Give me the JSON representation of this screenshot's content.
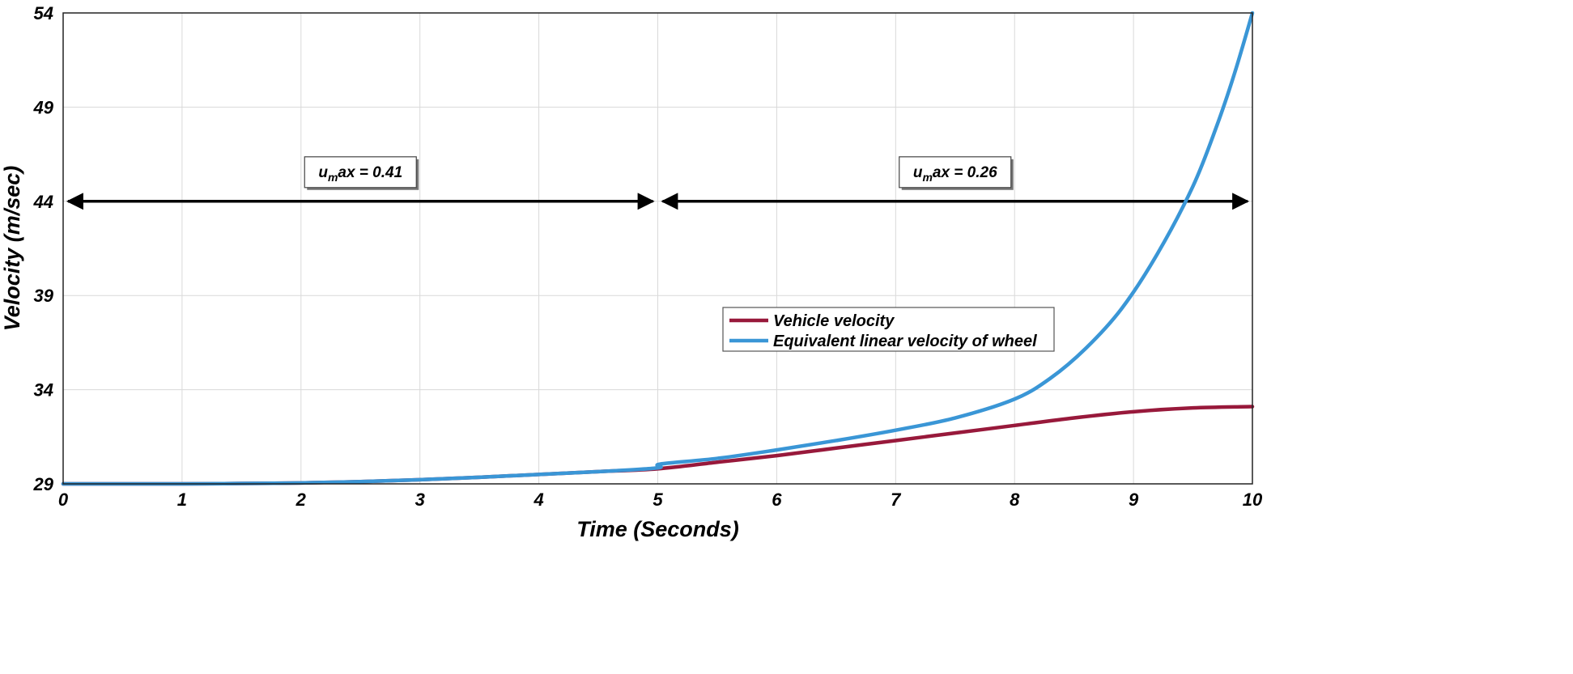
{
  "chart_data": {
    "type": "line",
    "title": "",
    "xlabel": "Time (Seconds)",
    "ylabel": "Velocity (m/sec)",
    "xlim": [
      0,
      10
    ],
    "ylim": [
      29,
      54
    ],
    "xticks": [
      "0",
      "1",
      "2",
      "3",
      "4",
      "5",
      "6",
      "7",
      "8",
      "9",
      "10"
    ],
    "yticks": [
      "29",
      "34",
      "39",
      "44",
      "49",
      "54"
    ],
    "grid": true,
    "legend_position": "center-right",
    "series": [
      {
        "name": "Vehicle velocity",
        "color": "#98193b",
        "x": [
          0,
          1,
          1.5,
          2,
          2.5,
          3,
          3.5,
          4,
          4.5,
          5,
          5.5,
          6,
          6.5,
          7,
          7.5,
          8,
          8.5,
          9,
          9.5,
          10
        ],
        "y": [
          29,
          29,
          29.02,
          29.05,
          29.12,
          29.22,
          29.35,
          29.5,
          29.65,
          29.8,
          30.15,
          30.5,
          30.9,
          31.3,
          31.7,
          32.1,
          32.5,
          32.83,
          33.03,
          33.1
        ]
      },
      {
        "name": "Equivalent linear velocity of wheel",
        "color": "#3a96d6",
        "x": [
          0,
          1,
          1.5,
          2,
          2.5,
          3,
          3.5,
          4,
          4.5,
          5,
          5.02,
          5.5,
          6,
          6.5,
          7,
          7.5,
          8,
          8.3,
          8.6,
          8.9,
          9.2,
          9.5,
          9.7,
          9.85,
          10
        ],
        "y": [
          29,
          29,
          29.02,
          29.05,
          29.12,
          29.22,
          29.35,
          29.5,
          29.65,
          29.85,
          30.05,
          30.35,
          30.8,
          31.3,
          31.85,
          32.5,
          33.5,
          34.6,
          36.2,
          38.3,
          41.2,
          44.8,
          48.0,
          50.8,
          54.0
        ]
      }
    ],
    "annotations": [
      {
        "text_main": "u",
        "text_sub": "m",
        "text_rest": "ax = 0.41",
        "x_from": 0,
        "x_to": 5,
        "y": 44
      },
      {
        "text_main": "u",
        "text_sub": "m",
        "text_rest": "ax = 0.26",
        "x_from": 5,
        "x_to": 10,
        "y": 44
      }
    ]
  }
}
